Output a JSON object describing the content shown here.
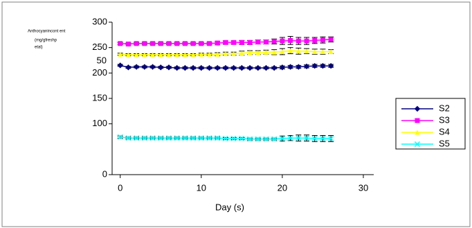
{
  "chart_data": {
    "type": "line",
    "y_label_lines": [
      "Anthocyanincont ent",
      "(mg/gfreshp",
      "etal)"
    ],
    "annotation": "50",
    "x_label": "Day (s)",
    "x": [
      0,
      1,
      2,
      3,
      4,
      5,
      6,
      7,
      8,
      9,
      10,
      11,
      12,
      13,
      14,
      15,
      16,
      17,
      18,
      19,
      20,
      21,
      22,
      23,
      24,
      25,
      26
    ],
    "series": [
      {
        "name": "S2",
        "color": "#000080",
        "marker": "diamond",
        "values": [
          215,
          211,
          212,
          212,
          212,
          211,
          211,
          210,
          210,
          210,
          210,
          210,
          210,
          210,
          210,
          210,
          210,
          210,
          210,
          210,
          211,
          212,
          212,
          213,
          214,
          214,
          214
        ],
        "errors": [
          2,
          2,
          2,
          2,
          2,
          2,
          2,
          2,
          2,
          2,
          2,
          2,
          2,
          2,
          2,
          2,
          2,
          2,
          2,
          2,
          3,
          3,
          3,
          3,
          3,
          3,
          3
        ]
      },
      {
        "name": "S3",
        "color": "#ff00ff",
        "marker": "square",
        "values": [
          258,
          257,
          258,
          258,
          258,
          258,
          258,
          258,
          258,
          258,
          258,
          258,
          259,
          260,
          260,
          260,
          260,
          261,
          261,
          262,
          263,
          264,
          263,
          263,
          264,
          265,
          266
        ],
        "errors": [
          2,
          2,
          2,
          2,
          2,
          2,
          2,
          2,
          2,
          2,
          2,
          2,
          3,
          3,
          3,
          4,
          4,
          4,
          4,
          5,
          7,
          8,
          7,
          7,
          6,
          6,
          5
        ]
      },
      {
        "name": "S4",
        "color": "#ffff00",
        "marker": "triangle",
        "values": [
          237,
          236,
          236,
          236,
          236,
          236,
          236,
          236,
          236,
          236,
          237,
          237,
          237,
          238,
          238,
          239,
          240,
          240,
          241,
          241,
          242,
          244,
          243,
          243,
          242,
          242,
          242
        ],
        "errors": [
          2,
          2,
          2,
          2,
          2,
          2,
          2,
          2,
          2,
          2,
          2,
          2,
          3,
          3,
          3,
          4,
          4,
          4,
          4,
          5,
          6,
          6,
          6,
          5,
          5,
          5,
          4
        ]
      },
      {
        "name": "S5",
        "color": "#00ffff",
        "marker": "x",
        "values": [
          74,
          72,
          72,
          72,
          72,
          72,
          72,
          72,
          72,
          72,
          72,
          72,
          72,
          71,
          71,
          71,
          70,
          70,
          70,
          70,
          71,
          72,
          72,
          72,
          71,
          71,
          71
        ],
        "errors": [
          2,
          2,
          2,
          2,
          2,
          2,
          2,
          2,
          2,
          2,
          2,
          2,
          2,
          2,
          2,
          2,
          2,
          2,
          2,
          2,
          5,
          5,
          6,
          6,
          6,
          6,
          6
        ]
      }
    ],
    "xlim": [
      -1,
      30
    ],
    "xticks": [
      0,
      10,
      20,
      30
    ],
    "ylim": [
      0,
      300
    ],
    "yticks": [
      0,
      100,
      150,
      200,
      250,
      300
    ],
    "legend": "right"
  }
}
